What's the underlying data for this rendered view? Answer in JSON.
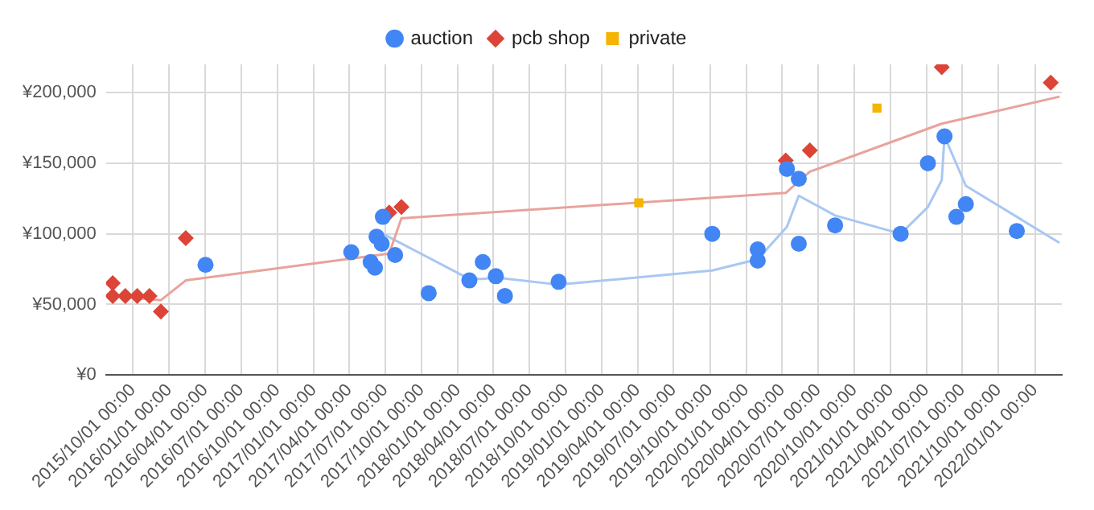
{
  "chart_data": {
    "type": "scatter",
    "legend": "top",
    "grid": true,
    "xlim": [
      "2015-07-25",
      "2022-03-10"
    ],
    "ylim": [
      0,
      220000
    ],
    "yticks": [
      {
        "value": 0,
        "label": "¥0"
      },
      {
        "value": 50000,
        "label": "¥50,000"
      },
      {
        "value": 100000,
        "label": "¥100,000"
      },
      {
        "value": 150000,
        "label": "¥150,000"
      },
      {
        "value": 200000,
        "label": "¥200,000"
      }
    ],
    "xticks": [
      {
        "value": "2015-10-01",
        "label": "2015/10/01 00:00"
      },
      {
        "value": "2016-01-01",
        "label": "2016/01/01 00:00"
      },
      {
        "value": "2016-04-01",
        "label": "2016/04/01 00:00"
      },
      {
        "value": "2016-07-01",
        "label": "2016/07/01 00:00"
      },
      {
        "value": "2016-10-01",
        "label": "2016/10/01 00:00"
      },
      {
        "value": "2017-01-01",
        "label": "2017/01/01 00:00"
      },
      {
        "value": "2017-04-01",
        "label": "2017/04/01 00:00"
      },
      {
        "value": "2017-07-01",
        "label": "2017/07/01 00:00"
      },
      {
        "value": "2017-10-01",
        "label": "2017/10/01 00:00"
      },
      {
        "value": "2018-01-01",
        "label": "2018/01/01 00:00"
      },
      {
        "value": "2018-04-01",
        "label": "2018/04/01 00:00"
      },
      {
        "value": "2018-07-01",
        "label": "2018/07/01 00:00"
      },
      {
        "value": "2018-10-01",
        "label": "2018/10/01 00:00"
      },
      {
        "value": "2019-01-01",
        "label": "2019/01/01 00:00"
      },
      {
        "value": "2019-04-01",
        "label": "2019/04/01 00:00"
      },
      {
        "value": "2019-07-01",
        "label": "2019/07/01 00:00"
      },
      {
        "value": "2019-10-01",
        "label": "2019/10/01 00:00"
      },
      {
        "value": "2020-01-01",
        "label": "2020/01/01 00:00"
      },
      {
        "value": "2020-04-01",
        "label": "2020/04/01 00:00"
      },
      {
        "value": "2020-07-01",
        "label": "2020/07/01 00:00"
      },
      {
        "value": "2020-10-01",
        "label": "2020/10/01 00:00"
      },
      {
        "value": "2021-01-01",
        "label": "2021/01/01 00:00"
      },
      {
        "value": "2021-04-01",
        "label": "2021/04/01 00:00"
      },
      {
        "value": "2021-07-01",
        "label": "2021/07/01 00:00"
      },
      {
        "value": "2021-10-01",
        "label": "2021/10/01 00:00"
      },
      {
        "value": "2022-01-01",
        "label": "2022/01/01 00:00"
      }
    ],
    "series": [
      {
        "type": "line",
        "marker": "none",
        "color": "#e8a39c",
        "x": [
          "2015-08-11",
          "2015-12-11",
          "2016-02-12",
          "2017-07-11",
          "2017-08-11",
          "2020-04-10",
          "2020-06-10",
          "2021-05-10",
          "2022-03-02"
        ],
        "values": [
          56000,
          53000,
          67000,
          86000,
          111000,
          129000,
          144000,
          178000,
          197000
        ]
      },
      {
        "type": "line",
        "marker": "none",
        "color": "#a9c7f2",
        "x": [
          "2017-06-25",
          "2018-01-30",
          "2018-03-05",
          "2018-04-07",
          "2018-09-13",
          "2019-10-07",
          "2020-01-30",
          "2020-04-13",
          "2020-05-13",
          "2020-08-13",
          "2021-01-26",
          "2021-04-05",
          "2021-05-10",
          "2021-05-17",
          "2021-07-10",
          "2022-03-02"
        ],
        "values": [
          100000,
          68000,
          68000,
          69000,
          64000,
          74000,
          82000,
          105000,
          127000,
          113000,
          100000,
          119000,
          138000,
          169000,
          134000,
          94000
        ]
      },
      {
        "name": "auction",
        "marker": "circle",
        "color": "#4285f4",
        "x": [
          "2016-04-02",
          "2017-04-06",
          "2017-05-25",
          "2017-06-05",
          "2017-06-25",
          "2017-06-09",
          "2017-06-22",
          "2017-07-26",
          "2017-10-19",
          "2018-01-30",
          "2018-03-05",
          "2018-04-07",
          "2018-04-30",
          "2018-09-13",
          "2019-10-07",
          "2020-01-30",
          "2020-01-30",
          "2020-04-13",
          "2020-05-13",
          "2020-05-13",
          "2020-08-13",
          "2021-01-26",
          "2021-04-05",
          "2021-05-17",
          "2021-06-16",
          "2021-07-10",
          "2021-11-16"
        ],
        "values": [
          78000,
          87000,
          80000,
          76000,
          112000,
          98000,
          93000,
          85000,
          58000,
          67000,
          80000,
          70000,
          56000,
          66000,
          100000,
          89000,
          81000,
          146000,
          139000,
          93000,
          106000,
          100000,
          150000,
          169000,
          112000,
          121000,
          102000
        ]
      },
      {
        "name": "pcb shop",
        "marker": "diamond",
        "color": "#db4437",
        "x": [
          "2015-08-11",
          "2015-08-11",
          "2015-09-12",
          "2015-10-12",
          "2015-11-12",
          "2015-12-11",
          "2016-02-12",
          "2017-07-11",
          "2017-08-11",
          "2020-04-10",
          "2020-06-10",
          "2021-05-10",
          "2022-02-10"
        ],
        "values": [
          65000,
          56000,
          56000,
          56000,
          56000,
          45000,
          97000,
          115000,
          119000,
          152000,
          159000,
          218000,
          207000
        ]
      },
      {
        "name": "private",
        "marker": "square",
        "color": "#f4b400",
        "x": [
          "2019-04-04",
          "2020-11-27"
        ],
        "values": [
          122000,
          189000
        ]
      }
    ]
  }
}
